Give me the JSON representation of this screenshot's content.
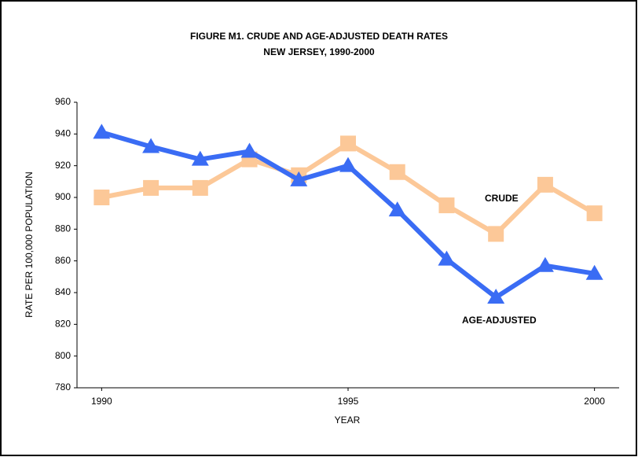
{
  "chart_data": {
    "type": "line",
    "title": "FIGURE M1. CRUDE AND AGE-ADJUSTED DEATH RATES",
    "subtitle": "NEW JERSEY, 1990-2000",
    "x_label": "YEAR",
    "y_label": "RATE PER 100,000 POPULATION",
    "x": [
      1990,
      1991,
      1992,
      1993,
      1994,
      1995,
      1996,
      1997,
      1998,
      1999,
      2000
    ],
    "series": [
      {
        "name": "CRUDE",
        "color": "#fcc898",
        "marker": "square",
        "values": [
          900,
          906,
          906,
          924,
          914,
          934,
          916,
          895,
          877,
          908,
          890
        ]
      },
      {
        "name": "AGE-ADJUSTED",
        "color": "#3a6cf4",
        "marker": "triangle",
        "values": [
          941,
          932,
          924,
          929,
          911,
          920,
          892,
          861,
          837,
          857,
          852
        ]
      }
    ],
    "xlim": [
      1989.5,
      2000.5
    ],
    "xticks": [
      1990,
      1995,
      2000
    ],
    "ylim": [
      780,
      960
    ],
    "yticks": [
      780,
      800,
      820,
      840,
      860,
      880,
      900,
      920,
      940,
      960
    ],
    "grid": false
  }
}
